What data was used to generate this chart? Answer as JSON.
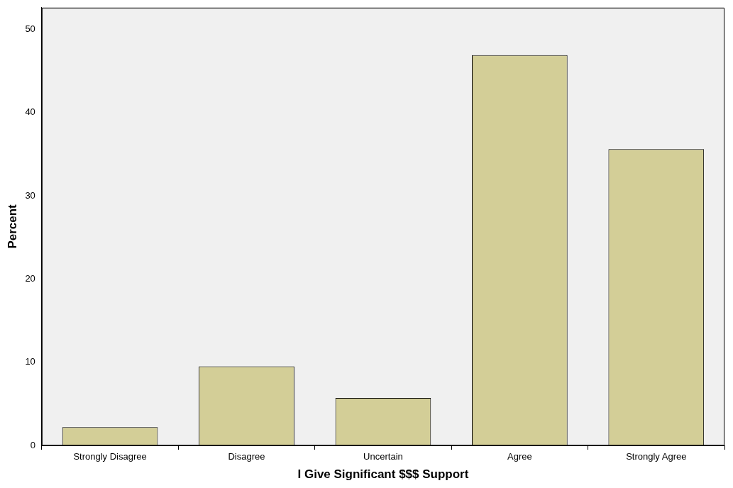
{
  "chart_data": {
    "type": "bar",
    "xlabel": "I Give Significant $$$ Support",
    "ylabel": "Percent",
    "categories": [
      "Strongly Disagree",
      "Disagree",
      "Uncertain",
      "Agree",
      "Strongly Agree"
    ],
    "values": [
      2.2,
      9.5,
      5.7,
      46.9,
      35.6
    ],
    "color": "#d3ce97",
    "ylim": [
      0,
      52.6
    ],
    "yticks": [
      0,
      10,
      20,
      30,
      40,
      50
    ],
    "grid": false,
    "legend": false
  }
}
